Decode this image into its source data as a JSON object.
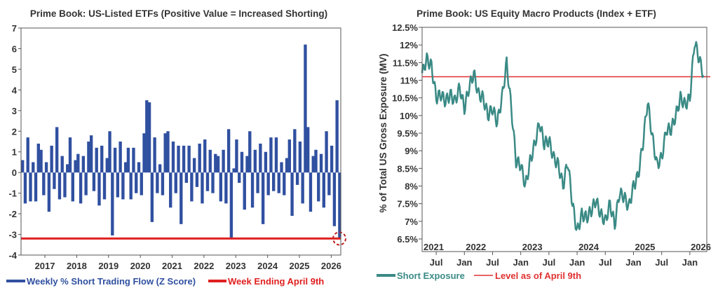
{
  "chart_data": [
    {
      "type": "bar",
      "title": "Prime Book: US-Listed ETFs (Positive Value = Increased Shorting)",
      "xlabel": "",
      "ylabel": "",
      "ylim": [
        -4,
        7
      ],
      "yticks": [
        "7",
        "6",
        "5",
        "4",
        "3",
        "2",
        "1",
        "0",
        "-1",
        "-2",
        "-3",
        "-4"
      ],
      "xticks": [
        "2017",
        "2018",
        "2019",
        "2020",
        "2021",
        "2022",
        "2023",
        "2024",
        "2025",
        "2026"
      ],
      "x_start": "2016-04",
      "x_end": "2026-04",
      "grid": false,
      "legend_placement": "bottom",
      "series": [
        {
          "name": "Weekly % Short Trading Flow (Z Score)",
          "color": "#3050a0",
          "values": [
            0.6,
            -1.5,
            1.7,
            -1.4,
            0.5,
            -1.4,
            1.4,
            1.1,
            -1.1,
            0.5,
            -1.9,
            1.3,
            -0.8,
            2.2,
            -1.3,
            0.8,
            -1.2,
            0.4,
            1.7,
            -1.4,
            0.6,
            0.9,
            -1.5,
            0.8,
            -1.1,
            1.5,
            1.8,
            -0.9,
            1.2,
            -1.6,
            1.3,
            -1.3,
            0.7,
            2.0,
            -3.05,
            1.2,
            -1.2,
            1.5,
            -1.3,
            0.5,
            1.2,
            -1.3,
            1.2,
            -1.0,
            0.5,
            -1.1,
            1.9,
            3.5,
            3.4,
            -2.4,
            1.7,
            -1.0,
            0.4,
            -1.1,
            1.9,
            2.0,
            -1.7,
            1.5,
            -1.0,
            1.3,
            -2.5,
            1.3,
            -0.5,
            1.3,
            -1.4,
            0.7,
            -0.7,
            1.4,
            -1.5,
            1.6,
            -0.9,
            1.1,
            -1.0,
            0.9,
            0.8,
            -1.4,
            1.1,
            -1.5,
            2.1,
            -3.15,
            0.2,
            1.6,
            -0.5,
            1.0,
            -1.8,
            0.8,
            2.0,
            -1.7,
            1.1,
            -1.0,
            1.4,
            -2.5,
            1.0,
            -1.1,
            1.7,
            -0.9,
            1.7,
            -1.0,
            0.5,
            -1.1,
            0.7,
            1.6,
            -2.1,
            2.1,
            -0.6,
            1.5,
            -1.5,
            6.2,
            2.2,
            -1.9,
            0.8,
            1.1,
            -1.4,
            0.9,
            -1.7,
            2.0,
            -1.1,
            1.3,
            -2.6,
            3.5,
            -3.2
          ]
        },
        {
          "name": "Week Ending April 9th",
          "color": "#e02020",
          "level": -3.2
        }
      ],
      "annotation": "dashed red circle marking latest value"
    },
    {
      "type": "line",
      "title": "Prime Book: US Equity Macro Products (Index + ETF)",
      "xlabel": "",
      "ylabel": "% of Total US Gross Exposure (MV)",
      "ylim": [
        6.5,
        12.5
      ],
      "yticks": [
        "12.5%",
        "12%",
        "11.5%",
        "11%",
        "10.5%",
        "10%",
        "9.5%",
        "9%",
        "8.5%",
        "8%",
        "7.5%",
        "7%",
        "6.5%"
      ],
      "year_labels": [
        "2021",
        "2022",
        "2023",
        "2024",
        "2025",
        "2026"
      ],
      "month_labels": [
        "Jul",
        "Jan",
        "Jul",
        "Jan",
        "Jul",
        "Jan",
        "Jul",
        "Jan",
        "Jul",
        "Jan"
      ],
      "x_start": "2021-04",
      "x_end": "2026-04",
      "grid": false,
      "legend_placement": "bottom",
      "series": [
        {
          "name": "Short Exposure",
          "color": "#3a8a85",
          "values": [
            11.2,
            11.6,
            11.4,
            10.5,
            10.6,
            10.4,
            10.6,
            10.4,
            10.8,
            10.2,
            10.8,
            11.2,
            10.6,
            10.5,
            10.0,
            10.2,
            9.8,
            10.5,
            11.5,
            10.2,
            8.7,
            8.6,
            8.0,
            8.7,
            9.2,
            9.8,
            9.2,
            9.3,
            8.8,
            8.6,
            8.0,
            8.7,
            7.5,
            6.7,
            7.2,
            7.1,
            7.3,
            7.6,
            7.2,
            7.0,
            7.5,
            6.9,
            7.8,
            7.7,
            7.4,
            8.0,
            8.3,
            9.2,
            10.4,
            9.4,
            8.6,
            8.8,
            9.6,
            9.6,
            10.0,
            10.5,
            10.3,
            10.5,
            12.1,
            11.6,
            11.1
          ]
        },
        {
          "name": "Level as of April 9th",
          "color": "#e03030",
          "level": 11.1
        }
      ]
    }
  ]
}
